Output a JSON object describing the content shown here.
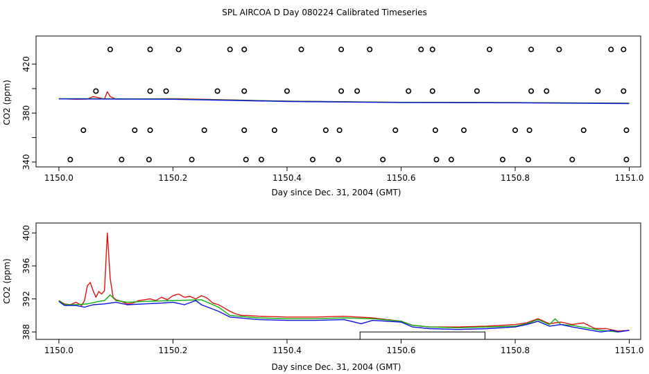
{
  "title": "SPL AIRCOA D  Day 080224  Calibrated Timeseries",
  "colors": {
    "red": "#e01010",
    "green": "#10b010",
    "blue": "#1010e0",
    "axis": "#000000"
  },
  "chart_data": [
    {
      "type": "line",
      "xlabel": "Day since Dec. 31, 2004 (GMT)",
      "ylabel": "CO2 (ppm)",
      "xlim": [
        1149.96,
        1151.02
      ],
      "ylim": [
        336,
        443
      ],
      "x_ticks": [
        1150.0,
        1150.2,
        1150.4,
        1150.6,
        1150.8,
        1151.0
      ],
      "x_tick_labels": [
        "1150.0",
        "1150.2",
        "1150.4",
        "1150.6",
        "1150.8",
        "1151.0"
      ],
      "y_ticks": [
        340,
        360,
        380,
        400,
        420
      ],
      "y_tick_labels": [
        "340",
        "",
        "380",
        "",
        "420"
      ],
      "series": [
        {
          "color": "red",
          "x": [
            1150.0,
            1150.03,
            1150.05,
            1150.06,
            1150.07,
            1150.08,
            1150.085,
            1150.09,
            1150.1,
            1150.2,
            1150.4,
            1150.6,
            1150.8,
            1151.0
          ],
          "y": [
            391.8,
            391.3,
            391.5,
            393.5,
            392.6,
            391.5,
            397.5,
            393.5,
            391.5,
            391.8,
            389.8,
            388.8,
            388.6,
            388.0
          ]
        },
        {
          "color": "green",
          "x": [
            1150.0,
            1150.2,
            1150.4,
            1150.6,
            1150.8,
            1151.0
          ],
          "y": [
            391.8,
            391.6,
            389.7,
            388.8,
            388.6,
            388.0
          ]
        },
        {
          "color": "blue",
          "x": [
            1150.0,
            1150.2,
            1150.4,
            1150.6,
            1150.8,
            1151.0
          ],
          "y": [
            391.6,
            391.3,
            389.5,
            388.6,
            388.4,
            387.8
          ]
        }
      ],
      "points": [
        {
          "x": 1150.09,
          "y": 432
        },
        {
          "x": 1150.16,
          "y": 432
        },
        {
          "x": 1150.21,
          "y": 432
        },
        {
          "x": 1150.3,
          "y": 432
        },
        {
          "x": 1150.325,
          "y": 432
        },
        {
          "x": 1150.425,
          "y": 432
        },
        {
          "x": 1150.495,
          "y": 432
        },
        {
          "x": 1150.545,
          "y": 432
        },
        {
          "x": 1150.635,
          "y": 432
        },
        {
          "x": 1150.655,
          "y": 432
        },
        {
          "x": 1150.755,
          "y": 432
        },
        {
          "x": 1150.828,
          "y": 432
        },
        {
          "x": 1150.877,
          "y": 432
        },
        {
          "x": 1150.968,
          "y": 432
        },
        {
          "x": 1150.99,
          "y": 432
        },
        {
          "x": 1150.065,
          "y": 398
        },
        {
          "x": 1150.16,
          "y": 398
        },
        {
          "x": 1150.188,
          "y": 398
        },
        {
          "x": 1150.278,
          "y": 398
        },
        {
          "x": 1150.325,
          "y": 398
        },
        {
          "x": 1150.4,
          "y": 398
        },
        {
          "x": 1150.495,
          "y": 398
        },
        {
          "x": 1150.523,
          "y": 398
        },
        {
          "x": 1150.613,
          "y": 398
        },
        {
          "x": 1150.655,
          "y": 398
        },
        {
          "x": 1150.733,
          "y": 398
        },
        {
          "x": 1150.828,
          "y": 398
        },
        {
          "x": 1150.855,
          "y": 398
        },
        {
          "x": 1150.945,
          "y": 398
        },
        {
          "x": 1150.99,
          "y": 398
        },
        {
          "x": 1150.043,
          "y": 366
        },
        {
          "x": 1150.133,
          "y": 366
        },
        {
          "x": 1150.16,
          "y": 366
        },
        {
          "x": 1150.255,
          "y": 366
        },
        {
          "x": 1150.325,
          "y": 366
        },
        {
          "x": 1150.378,
          "y": 366
        },
        {
          "x": 1150.468,
          "y": 366
        },
        {
          "x": 1150.492,
          "y": 366
        },
        {
          "x": 1150.59,
          "y": 366
        },
        {
          "x": 1150.66,
          "y": 366
        },
        {
          "x": 1150.71,
          "y": 366
        },
        {
          "x": 1150.8,
          "y": 366
        },
        {
          "x": 1150.825,
          "y": 366
        },
        {
          "x": 1150.92,
          "y": 366
        },
        {
          "x": 1150.995,
          "y": 366
        },
        {
          "x": 1150.02,
          "y": 342
        },
        {
          "x": 1150.11,
          "y": 342
        },
        {
          "x": 1150.158,
          "y": 342
        },
        {
          "x": 1150.233,
          "y": 342
        },
        {
          "x": 1150.328,
          "y": 342
        },
        {
          "x": 1150.355,
          "y": 342
        },
        {
          "x": 1150.445,
          "y": 342
        },
        {
          "x": 1150.49,
          "y": 342
        },
        {
          "x": 1150.568,
          "y": 342
        },
        {
          "x": 1150.662,
          "y": 342
        },
        {
          "x": 1150.688,
          "y": 342
        },
        {
          "x": 1150.778,
          "y": 342
        },
        {
          "x": 1150.823,
          "y": 342
        },
        {
          "x": 1150.9,
          "y": 342
        },
        {
          "x": 1150.995,
          "y": 342
        }
      ]
    },
    {
      "type": "line",
      "xlabel": "Day since Dec. 31, 2004 (GMT)",
      "ylabel": "CO2 (ppm)",
      "xlim": [
        1149.96,
        1151.02
      ],
      "ylim": [
        387.1,
        401.2
      ],
      "x_ticks": [
        1150.0,
        1150.2,
        1150.4,
        1150.6,
        1150.8,
        1151.0
      ],
      "x_tick_labels": [
        "1150.0",
        "1150.2",
        "1150.4",
        "1150.6",
        "1150.8",
        "1151.0"
      ],
      "y_ticks": [
        388,
        392,
        396,
        400
      ],
      "y_tick_labels": [
        "388",
        "392",
        "396",
        "400"
      ],
      "box": {
        "x": [
          1150.528,
          1150.747
        ],
        "y": [
          387.1,
          388.0
        ]
      },
      "series": [
        {
          "color": "red",
          "x": [
            1150.0,
            1150.01,
            1150.02,
            1150.03,
            1150.04,
            1150.045,
            1150.05,
            1150.055,
            1150.06,
            1150.065,
            1150.07,
            1150.075,
            1150.08,
            1150.085,
            1150.09,
            1150.095,
            1150.1,
            1150.11,
            1150.12,
            1150.13,
            1150.14,
            1150.15,
            1150.16,
            1150.17,
            1150.18,
            1150.19,
            1150.2,
            1150.21,
            1150.22,
            1150.23,
            1150.24,
            1150.25,
            1150.26,
            1150.27,
            1150.28,
            1150.29,
            1150.3,
            1150.31,
            1150.32,
            1150.33,
            1150.35,
            1150.4,
            1150.45,
            1150.5,
            1150.55,
            1150.6,
            1150.62,
            1150.65,
            1150.7,
            1150.75,
            1150.8,
            1150.82,
            1150.84,
            1150.86,
            1150.88,
            1150.9,
            1150.92,
            1150.94,
            1150.96,
            1150.98,
            1151.0
          ],
          "y": [
            391.8,
            391.4,
            391.3,
            391.6,
            391.2,
            391.8,
            393.6,
            394.0,
            393.0,
            392.2,
            392.9,
            392.6,
            393.0,
            400.0,
            394.5,
            392.2,
            391.9,
            391.7,
            391.4,
            391.5,
            391.8,
            391.9,
            392.0,
            391.8,
            392.2,
            391.9,
            392.4,
            392.6,
            392.2,
            392.3,
            392.0,
            392.4,
            392.1,
            391.5,
            391.3,
            390.9,
            390.5,
            390.2,
            390.0,
            390.0,
            389.9,
            389.8,
            389.8,
            389.9,
            389.7,
            389.3,
            388.8,
            388.6,
            388.6,
            388.7,
            388.9,
            389.1,
            389.6,
            389.0,
            389.2,
            388.9,
            389.1,
            388.4,
            388.4,
            388.1,
            388.2
          ]
        },
        {
          "color": "green",
          "x": [
            1150.0,
            1150.01,
            1150.03,
            1150.05,
            1150.07,
            1150.08,
            1150.09,
            1150.1,
            1150.12,
            1150.15,
            1150.2,
            1150.25,
            1150.28,
            1150.3,
            1150.35,
            1150.4,
            1150.45,
            1150.5,
            1150.55,
            1150.6,
            1150.62,
            1150.65,
            1150.7,
            1150.75,
            1150.8,
            1150.82,
            1150.84,
            1150.86,
            1150.87,
            1150.88,
            1150.9,
            1150.95,
            1150.98,
            1151.0
          ],
          "y": [
            391.8,
            391.3,
            391.3,
            391.4,
            391.7,
            391.8,
            392.5,
            391.8,
            391.6,
            391.7,
            391.8,
            391.9,
            391.0,
            390.0,
            389.7,
            389.6,
            389.6,
            389.7,
            389.6,
            389.3,
            388.8,
            388.6,
            388.5,
            388.6,
            388.7,
            389.0,
            389.5,
            388.9,
            389.6,
            388.9,
            388.8,
            388.2,
            388.0,
            388.2
          ]
        },
        {
          "color": "blue",
          "x": [
            1150.0,
            1150.01,
            1150.03,
            1150.045,
            1150.06,
            1150.08,
            1150.1,
            1150.12,
            1150.15,
            1150.18,
            1150.2,
            1150.22,
            1150.24,
            1150.25,
            1150.28,
            1150.3,
            1150.35,
            1150.4,
            1150.45,
            1150.5,
            1150.53,
            1150.55,
            1150.6,
            1150.62,
            1150.65,
            1150.7,
            1150.75,
            1150.8,
            1150.82,
            1150.84,
            1150.86,
            1150.88,
            1150.9,
            1150.95,
            1150.97,
            1150.98,
            1151.0
          ],
          "y": [
            391.7,
            391.2,
            391.2,
            391.0,
            391.3,
            391.4,
            391.6,
            391.3,
            391.4,
            391.5,
            391.6,
            391.3,
            391.8,
            391.3,
            390.5,
            389.8,
            389.5,
            389.4,
            389.4,
            389.5,
            389.0,
            389.4,
            389.2,
            388.6,
            388.4,
            388.3,
            388.4,
            388.6,
            388.9,
            389.3,
            388.7,
            388.9,
            388.6,
            388.0,
            388.2,
            388.0,
            388.2
          ]
        }
      ]
    }
  ]
}
